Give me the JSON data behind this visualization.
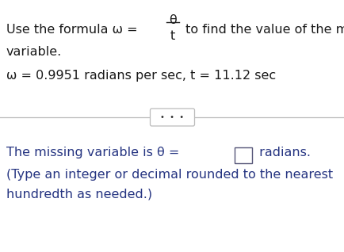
{
  "bg_color": "#ffffff",
  "text_color_black": "#1a1a1a",
  "text_color_blue": "#253481",
  "line1_pre": "Use the formula ω = ",
  "line1_theta": "θ",
  "line1_t": "t",
  "line1_post": " to find the value of the missing",
  "line2": "variable.",
  "line3": "ω = 0.9951 radians per sec, t = 11.12 sec",
  "dots_text": "•  •  •",
  "bot_pre": "The missing variable is θ = ",
  "bot_post": " radians.",
  "bot_line2": "(Type an integer or decimal rounded to the nearest",
  "bot_line3": "hundredth as needed.)",
  "figsize": [
    4.35,
    3.18
  ],
  "dpi": 100
}
